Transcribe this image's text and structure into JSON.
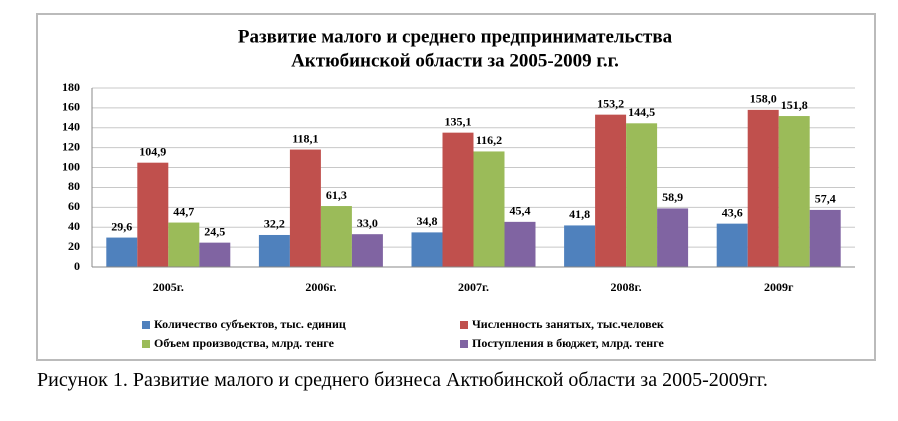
{
  "chart_data": {
    "type": "bar",
    "title": [
      "Развитие малого и среднего предпринимательства",
      "Актюбинской области за 2005-2009 г.г."
    ],
    "categories": [
      "2005г.",
      "2006г.",
      "2007г.",
      "2008г.",
      "2009г"
    ],
    "series": [
      {
        "name": "Количество субъектов, тыс. единиц",
        "color": "#4f81bd",
        "values": [
          29.6,
          32.2,
          34.8,
          41.8,
          43.6
        ],
        "value_labels": [
          "29,6",
          "32,2",
          "34,8",
          "41,8",
          "43,6"
        ]
      },
      {
        "name": "Численность занятых, тыс.человек",
        "color": "#c0504d",
        "values": [
          104.9,
          118.1,
          135.1,
          153.2,
          158.0
        ],
        "value_labels": [
          "104,9",
          "118,1",
          "135,1",
          "153,2",
          "158,0"
        ]
      },
      {
        "name": "Объем производства, млрд. тенге",
        "color": "#9bbb59",
        "values": [
          44.7,
          61.3,
          116.2,
          144.5,
          151.8
        ],
        "value_labels": [
          "44,7",
          "61,3",
          "116,2",
          "144,5",
          "151,8"
        ]
      },
      {
        "name": "Поступления в бюджет, млрд. тенге",
        "color": "#8064a2",
        "values": [
          24.5,
          33.0,
          45.4,
          58.9,
          57.4
        ],
        "value_labels": [
          "24,5",
          "33,0",
          "45,4",
          "58,9",
          "57,4"
        ]
      }
    ],
    "ylim": [
      0,
      180
    ],
    "yticks": [
      0,
      20,
      40,
      60,
      80,
      100,
      120,
      140,
      160,
      180
    ],
    "grid": true,
    "legend": "bottom"
  },
  "caption": "Рисунок 1. Развитие малого и среднего бизнеса Актюбинской области за 2005-2009гг."
}
